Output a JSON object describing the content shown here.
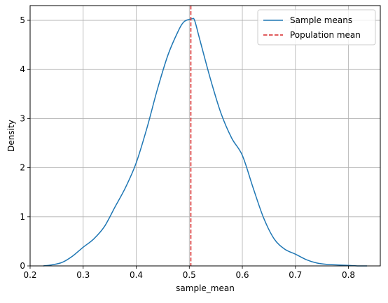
{
  "chart_data": {
    "type": "line",
    "xlabel": "sample_mean",
    "ylabel": "Density",
    "xlim": [
      0.2,
      0.86
    ],
    "ylim": [
      0,
      5.3
    ],
    "x_ticks": [
      0.2,
      0.3,
      0.4,
      0.5,
      0.6,
      0.7,
      0.8
    ],
    "x_tick_labels": [
      "0.2",
      "0.3",
      "0.4",
      "0.5",
      "0.6",
      "0.7",
      "0.8"
    ],
    "y_ticks": [
      0,
      1,
      2,
      3,
      4,
      5
    ],
    "y_tick_labels": [
      "0",
      "1",
      "2",
      "3",
      "4",
      "5"
    ],
    "grid": true,
    "legend_position": "top-right",
    "series": [
      {
        "name": "Sample means",
        "kind": "line",
        "style": "solid",
        "color": "#1f77b4",
        "x": [
          0.225,
          0.24,
          0.26,
          0.28,
          0.3,
          0.32,
          0.34,
          0.36,
          0.38,
          0.4,
          0.42,
          0.44,
          0.46,
          0.48,
          0.49,
          0.5,
          0.505,
          0.51,
          0.52,
          0.54,
          0.56,
          0.58,
          0.6,
          0.62,
          0.64,
          0.66,
          0.68,
          0.7,
          0.72,
          0.74,
          0.76,
          0.78,
          0.8,
          0.82,
          0.835
        ],
        "y": [
          0.0,
          0.02,
          0.07,
          0.2,
          0.38,
          0.55,
          0.8,
          1.2,
          1.6,
          2.1,
          2.8,
          3.6,
          4.3,
          4.8,
          4.97,
          5.02,
          5.03,
          5.0,
          4.6,
          3.8,
          3.1,
          2.6,
          2.25,
          1.6,
          0.98,
          0.55,
          0.34,
          0.24,
          0.13,
          0.06,
          0.03,
          0.02,
          0.01,
          0.0,
          0.0
        ]
      },
      {
        "name": "Population mean",
        "kind": "vline",
        "style": "dashed",
        "color": "#d62728",
        "x_value": 0.503
      }
    ]
  }
}
